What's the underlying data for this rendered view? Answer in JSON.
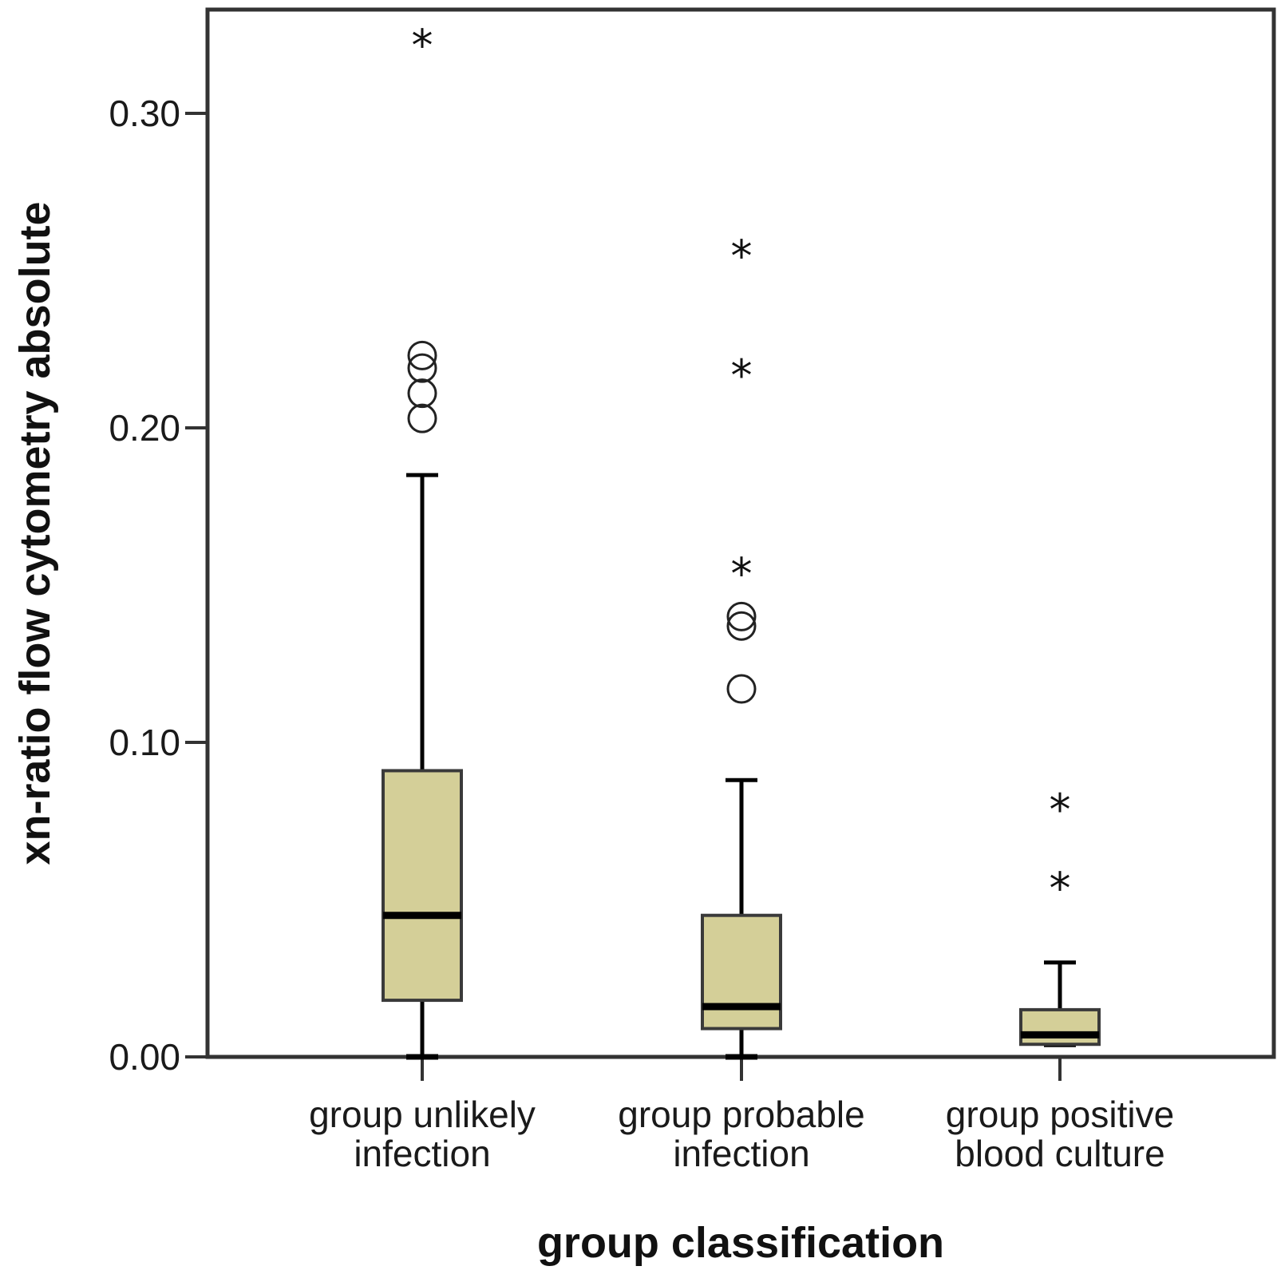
{
  "chart_data": {
    "type": "box",
    "title": "",
    "xlabel": "group classification",
    "ylabel": "xn-ratio flow cytometry absolute",
    "ylim": [
      0,
      0.333
    ],
    "yticks": [
      0.0,
      0.1,
      0.2,
      0.3
    ],
    "ytick_labels": [
      "0.00",
      "0.10",
      "0.20",
      "0.30"
    ],
    "grid": false,
    "box_color": "#d4cf98",
    "line_color": "#000000",
    "categories": [
      [
        "group unlikely",
        "infection"
      ],
      [
        "group probable",
        "infection"
      ],
      [
        "group positive",
        "blood culture"
      ]
    ],
    "boxes": [
      {
        "whisker_low": 0.0,
        "q1": 0.018,
        "median": 0.045,
        "q3": 0.091,
        "whisker_high": 0.185,
        "outliers": [
          0.203,
          0.211,
          0.219,
          0.223
        ],
        "extremes": [
          0.323
        ]
      },
      {
        "whisker_low": 0.0,
        "q1": 0.009,
        "median": 0.016,
        "q3": 0.045,
        "whisker_high": 0.088,
        "outliers": [
          0.117,
          0.137,
          0.14
        ],
        "extremes": [
          0.155,
          0.218,
          0.256
        ]
      },
      {
        "whisker_low": 0.004,
        "q1": 0.004,
        "median": 0.007,
        "q3": 0.015,
        "whisker_high": 0.03,
        "outliers": [],
        "extremes": [
          0.055,
          0.08
        ]
      }
    ]
  }
}
